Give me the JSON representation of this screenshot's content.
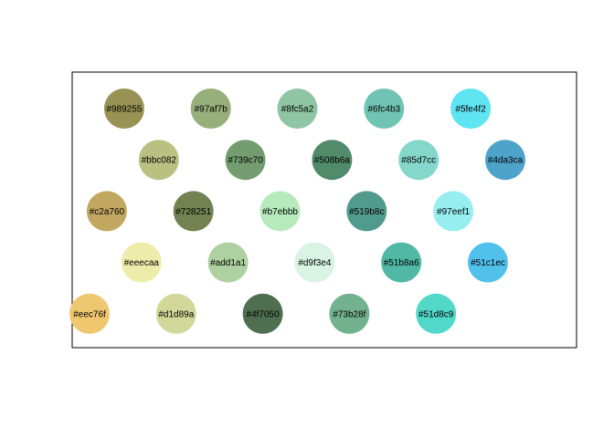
{
  "chart_data": {
    "type": "scatter",
    "title": "",
    "xlabel": "",
    "ylabel": "",
    "grid": false,
    "legend": "none",
    "xlim": [
      0,
      10.5
    ],
    "ylim": [
      0,
      5.5
    ],
    "points": [
      {
        "x": 2.0,
        "y": 5,
        "color": "#989255",
        "label": "#989255"
      },
      {
        "x": 4.0,
        "y": 5,
        "color": "#97af7b",
        "label": "#97af7b"
      },
      {
        "x": 6.0,
        "y": 5,
        "color": "#8fc5a2",
        "label": "#8fc5a2"
      },
      {
        "x": 8.0,
        "y": 5,
        "color": "#6fc4b3",
        "label": "#6fc4b3"
      },
      {
        "x": 10.0,
        "y": 5,
        "color": "#5fe4f2",
        "label": "#5fe4f2"
      },
      {
        "x": 2.8,
        "y": 4,
        "color": "#bbc082",
        "label": "#bbc082"
      },
      {
        "x": 4.8,
        "y": 4,
        "color": "#739c70",
        "label": "#739c70"
      },
      {
        "x": 6.8,
        "y": 4,
        "color": "#508b6a",
        "label": "#508b6a"
      },
      {
        "x": 8.8,
        "y": 4,
        "color": "#85d7cc",
        "label": "#85d7cc"
      },
      {
        "x": 10.8,
        "y": 4,
        "color": "#4da3ca",
        "label": "#4da3ca"
      },
      {
        "x": 1.6,
        "y": 3,
        "color": "#c2a760",
        "label": "#c2a760"
      },
      {
        "x": 3.6,
        "y": 3,
        "color": "#728251",
        "label": "#728251"
      },
      {
        "x": 5.6,
        "y": 3,
        "color": "#b7ebbb",
        "label": "#b7ebbb"
      },
      {
        "x": 7.6,
        "y": 3,
        "color": "#519b8c",
        "label": "#519b8c"
      },
      {
        "x": 9.6,
        "y": 3,
        "color": "#97eef1",
        "label": "#97eef1"
      },
      {
        "x": 2.4,
        "y": 2,
        "color": "#eeecaa",
        "label": "#eeecaa"
      },
      {
        "x": 4.4,
        "y": 2,
        "color": "#add1a1",
        "label": "#add1a1"
      },
      {
        "x": 6.4,
        "y": 2,
        "color": "#d9f3e4",
        "label": "#d9f3e4"
      },
      {
        "x": 8.4,
        "y": 2,
        "color": "#51b8a6",
        "label": "#51b8a6"
      },
      {
        "x": 10.4,
        "y": 2,
        "color": "#51c1ec",
        "label": "#51c1ec"
      },
      {
        "x": 1.2,
        "y": 1,
        "color": "#eec76f",
        "label": "#eec76f"
      },
      {
        "x": 3.2,
        "y": 1,
        "color": "#d1d89a",
        "label": "#d1d89a"
      },
      {
        "x": 5.2,
        "y": 1,
        "color": "#4f7050",
        "label": "#4f7050"
      },
      {
        "x": 7.2,
        "y": 1,
        "color": "#73b28f",
        "label": "#73b28f"
      },
      {
        "x": 9.2,
        "y": 1,
        "color": "#51d8c9",
        "label": "#51d8c9"
      }
    ]
  }
}
